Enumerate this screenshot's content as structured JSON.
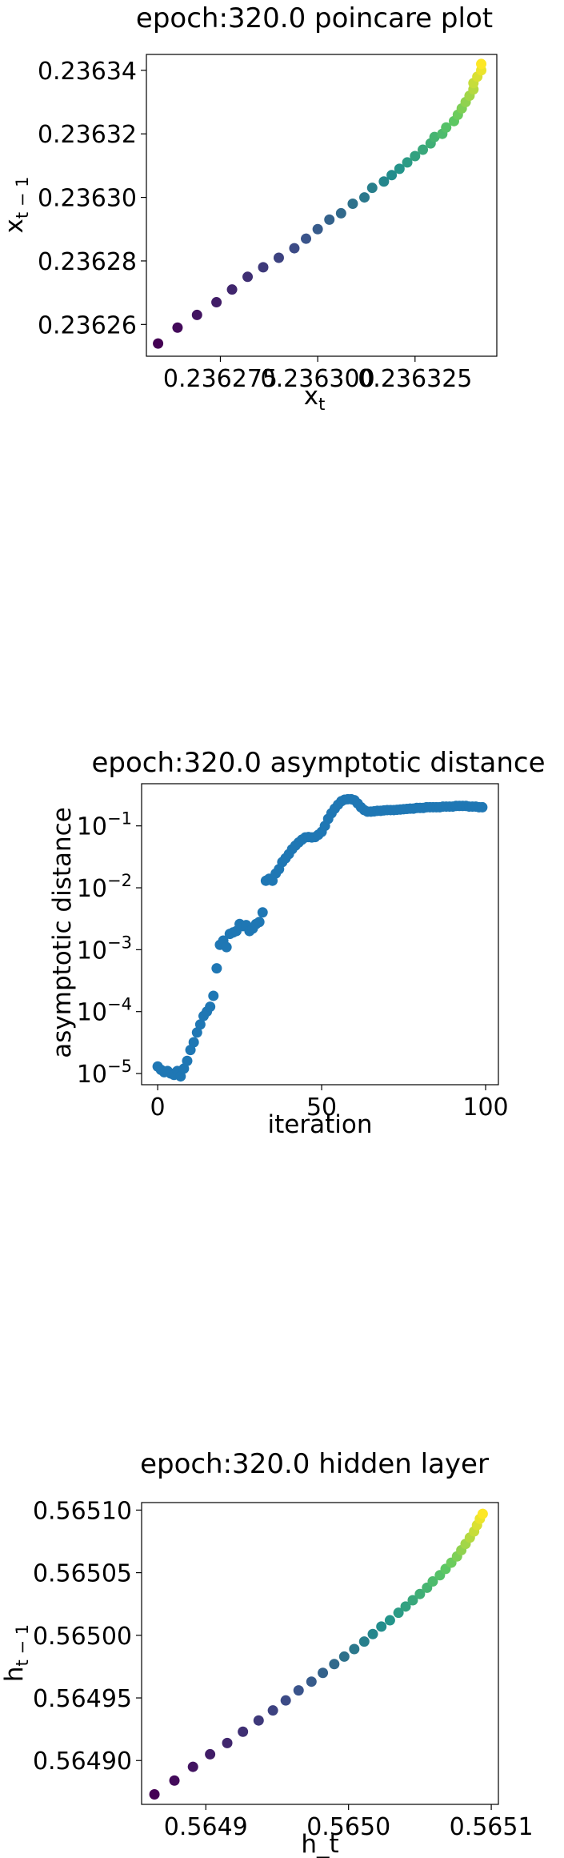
{
  "chart_data": [
    {
      "type": "scatter",
      "title": "epoch:320.0 poincare plot",
      "xlabel": {
        "base": "x",
        "sub": "t"
      },
      "ylabel": {
        "base": "x",
        "sub": "t − 1"
      },
      "xlim": [
        0.236256,
        0.236346
      ],
      "ylim": [
        0.23625,
        0.236345
      ],
      "x_ticks": [
        {
          "value": 0.236275,
          "label": "0.236275"
        },
        {
          "value": 0.2363,
          "label": "0.236300"
        },
        {
          "value": 0.236325,
          "label": "0.236325"
        }
      ],
      "y_ticks": [
        {
          "value": 0.23626,
          "label": "0.23626"
        },
        {
          "value": 0.23628,
          "label": "0.23628"
        },
        {
          "value": 0.2363,
          "label": "0.23630"
        },
        {
          "value": 0.23632,
          "label": "0.23632"
        },
        {
          "value": 0.23634,
          "label": "0.23634"
        }
      ],
      "colormap": "viridis",
      "colors": [
        "#440154",
        "#3b528b",
        "#21918c",
        "#5ec962",
        "#fde725"
      ],
      "points": [
        [
          0.236259,
          0.236254
        ],
        [
          0.236264,
          0.236259
        ],
        [
          0.236269,
          0.236263
        ],
        [
          0.236274,
          0.236267
        ],
        [
          0.236278,
          0.236271
        ],
        [
          0.236282,
          0.236275
        ],
        [
          0.236286,
          0.236278
        ],
        [
          0.23629,
          0.236281
        ],
        [
          0.236294,
          0.236284
        ],
        [
          0.236297,
          0.236287
        ],
        [
          0.2363,
          0.23629
        ],
        [
          0.236303,
          0.236293
        ],
        [
          0.236306,
          0.236295
        ],
        [
          0.236309,
          0.236298
        ],
        [
          0.236312,
          0.2363
        ],
        [
          0.236314,
          0.236303
        ],
        [
          0.236317,
          0.236305
        ],
        [
          0.236319,
          0.236307
        ],
        [
          0.236321,
          0.236309
        ],
        [
          0.236323,
          0.236311
        ],
        [
          0.236325,
          0.236313
        ],
        [
          0.236327,
          0.236315
        ],
        [
          0.236329,
          0.236317
        ],
        [
          0.23633,
          0.236319
        ],
        [
          0.236332,
          0.23632
        ],
        [
          0.236333,
          0.236322
        ],
        [
          0.236335,
          0.236324
        ],
        [
          0.236336,
          0.236326
        ],
        [
          0.236337,
          0.236328
        ],
        [
          0.236338,
          0.23633
        ],
        [
          0.236339,
          0.236332
        ],
        [
          0.23634,
          0.236334
        ],
        [
          0.23634,
          0.236336
        ],
        [
          0.236341,
          0.236338
        ],
        [
          0.236342,
          0.23634
        ],
        [
          0.236342,
          0.236342
        ]
      ],
      "grid": false
    },
    {
      "type": "scatter",
      "title": "epoch:320.0 asymptotic distance",
      "xlabel": "iteration",
      "ylabel": "asymptotic distance",
      "xlim": [
        -4.9,
        103.9
      ],
      "ylim": [
        6.6e-06,
        0.48
      ],
      "yscale": "log",
      "x_ticks": [
        {
          "value": 0,
          "label": "0"
        },
        {
          "value": 50,
          "label": "50"
        },
        {
          "value": 100,
          "label": "100"
        }
      ],
      "y_ticks": [
        {
          "value": 1e-05,
          "base": "10",
          "exp": "−5"
        },
        {
          "value": 0.0001,
          "base": "10",
          "exp": "−4"
        },
        {
          "value": 0.001,
          "base": "10",
          "exp": "−3"
        },
        {
          "value": 0.01,
          "base": "10",
          "exp": "−2"
        },
        {
          "value": 0.1,
          "base": "10",
          "exp": "−1"
        }
      ],
      "point_color": "#1f77b4",
      "points": [
        [
          0,
          1.3e-05
        ],
        [
          1,
          1.15e-05
        ],
        [
          2,
          1.05e-05
        ],
        [
          3,
          1.1e-05
        ],
        [
          4,
          1e-05
        ],
        [
          5,
          9.5e-06
        ],
        [
          6,
          1.1e-05
        ],
        [
          7,
          9e-06
        ],
        [
          8,
          1.2e-05
        ],
        [
          9,
          1.6e-05
        ],
        [
          10,
          2.4e-05
        ],
        [
          11,
          3.2e-05
        ],
        [
          12,
          4.6e-05
        ],
        [
          13,
          6.2e-05
        ],
        [
          14,
          8.5e-05
        ],
        [
          15,
          0.0001
        ],
        [
          16,
          0.00012
        ],
        [
          17,
          0.00018
        ],
        [
          18,
          0.0005
        ],
        [
          19,
          0.0012
        ],
        [
          20,
          0.0014
        ],
        [
          21,
          0.0011
        ],
        [
          22,
          0.0018
        ],
        [
          23,
          0.0019
        ],
        [
          24,
          0.002
        ],
        [
          25,
          0.0026
        ],
        [
          26,
          0.0024
        ],
        [
          27,
          0.0025
        ],
        [
          28,
          0.002
        ],
        [
          29,
          0.0022
        ],
        [
          30,
          0.0026
        ],
        [
          31,
          0.0028
        ],
        [
          32,
          0.004
        ],
        [
          33,
          0.013
        ],
        [
          34,
          0.014
        ],
        [
          35,
          0.013
        ],
        [
          36,
          0.017
        ],
        [
          37,
          0.02
        ],
        [
          38,
          0.026
        ],
        [
          39,
          0.03
        ],
        [
          40,
          0.035
        ],
        [
          41,
          0.042
        ],
        [
          42,
          0.048
        ],
        [
          43,
          0.054
        ],
        [
          44,
          0.06
        ],
        [
          45,
          0.065
        ],
        [
          46,
          0.066
        ],
        [
          47,
          0.065
        ],
        [
          48,
          0.066
        ],
        [
          49,
          0.072
        ],
        [
          50,
          0.08
        ],
        [
          51,
          0.1
        ],
        [
          52,
          0.13
        ],
        [
          53,
          0.16
        ],
        [
          54,
          0.19
        ],
        [
          55,
          0.22
        ],
        [
          56,
          0.25
        ],
        [
          57,
          0.265
        ],
        [
          58,
          0.27
        ],
        [
          59,
          0.27
        ],
        [
          60,
          0.26
        ],
        [
          61,
          0.23
        ],
        [
          62,
          0.2
        ],
        [
          63,
          0.18
        ],
        [
          64,
          0.17
        ],
        [
          65,
          0.17
        ],
        [
          66,
          0.172
        ],
        [
          67,
          0.175
        ],
        [
          68,
          0.175
        ],
        [
          69,
          0.178
        ],
        [
          70,
          0.18
        ],
        [
          71,
          0.18
        ],
        [
          72,
          0.18
        ],
        [
          73,
          0.182
        ],
        [
          74,
          0.184
        ],
        [
          75,
          0.186
        ],
        [
          76,
          0.188
        ],
        [
          77,
          0.19
        ],
        [
          78,
          0.19
        ],
        [
          79,
          0.195
        ],
        [
          80,
          0.195
        ],
        [
          81,
          0.195
        ],
        [
          82,
          0.2
        ],
        [
          83,
          0.2
        ],
        [
          84,
          0.2
        ],
        [
          85,
          0.2
        ],
        [
          86,
          0.2
        ],
        [
          87,
          0.205
        ],
        [
          88,
          0.205
        ],
        [
          89,
          0.205
        ],
        [
          90,
          0.205
        ],
        [
          91,
          0.21
        ],
        [
          92,
          0.21
        ],
        [
          93,
          0.21
        ],
        [
          94,
          0.21
        ],
        [
          95,
          0.205
        ],
        [
          96,
          0.205
        ],
        [
          97,
          0.205
        ],
        [
          98,
          0.2
        ],
        [
          99,
          0.2
        ]
      ],
      "grid": false
    },
    {
      "type": "scatter",
      "title": "epoch:320.0 hidden layer",
      "xlabel": "h_t",
      "ylabel": {
        "base": "h",
        "sub": "t − 1"
      },
      "xlim": [
        0.564855,
        0.565105
      ],
      "ylim": [
        0.564865,
        0.565106
      ],
      "x_ticks": [
        {
          "value": 0.5649,
          "label": "0.5649"
        },
        {
          "value": 0.565,
          "label": "0.5650"
        },
        {
          "value": 0.5651,
          "label": "0.5651"
        }
      ],
      "y_ticks": [
        {
          "value": 0.5649,
          "label": "0.56490"
        },
        {
          "value": 0.56495,
          "label": "0.56495"
        },
        {
          "value": 0.565,
          "label": "0.56500"
        },
        {
          "value": 0.56505,
          "label": "0.56505"
        },
        {
          "value": 0.5651,
          "label": "0.56510"
        }
      ],
      "colormap": "viridis",
      "colors": [
        "#440154",
        "#3b528b",
        "#21918c",
        "#5ec962",
        "#fde725"
      ],
      "points": [
        [
          0.564864,
          0.564873
        ],
        [
          0.564878,
          0.564884
        ],
        [
          0.564891,
          0.564895
        ],
        [
          0.564903,
          0.564905
        ],
        [
          0.564915,
          0.564914
        ],
        [
          0.564926,
          0.564923
        ],
        [
          0.564937,
          0.564932
        ],
        [
          0.564947,
          0.56494
        ],
        [
          0.564956,
          0.564948
        ],
        [
          0.564965,
          0.564956
        ],
        [
          0.564974,
          0.564963
        ],
        [
          0.564982,
          0.56497
        ],
        [
          0.56499,
          0.564977
        ],
        [
          0.564997,
          0.564983
        ],
        [
          0.565004,
          0.564989
        ],
        [
          0.565011,
          0.564995
        ],
        [
          0.565017,
          0.565001
        ],
        [
          0.565023,
          0.565007
        ],
        [
          0.565029,
          0.565012
        ],
        [
          0.565035,
          0.565018
        ],
        [
          0.56504,
          0.565023
        ],
        [
          0.565045,
          0.565028
        ],
        [
          0.56505,
          0.565033
        ],
        [
          0.565055,
          0.565038
        ],
        [
          0.565059,
          0.565043
        ],
        [
          0.565064,
          0.565048
        ],
        [
          0.565068,
          0.565053
        ],
        [
          0.565072,
          0.565058
        ],
        [
          0.565076,
          0.565063
        ],
        [
          0.565079,
          0.565068
        ],
        [
          0.565082,
          0.565073
        ],
        [
          0.565085,
          0.565078
        ],
        [
          0.565088,
          0.565083
        ],
        [
          0.56509,
          0.565088
        ],
        [
          0.565092,
          0.565093
        ],
        [
          0.565094,
          0.565097
        ]
      ],
      "grid": false
    }
  ]
}
